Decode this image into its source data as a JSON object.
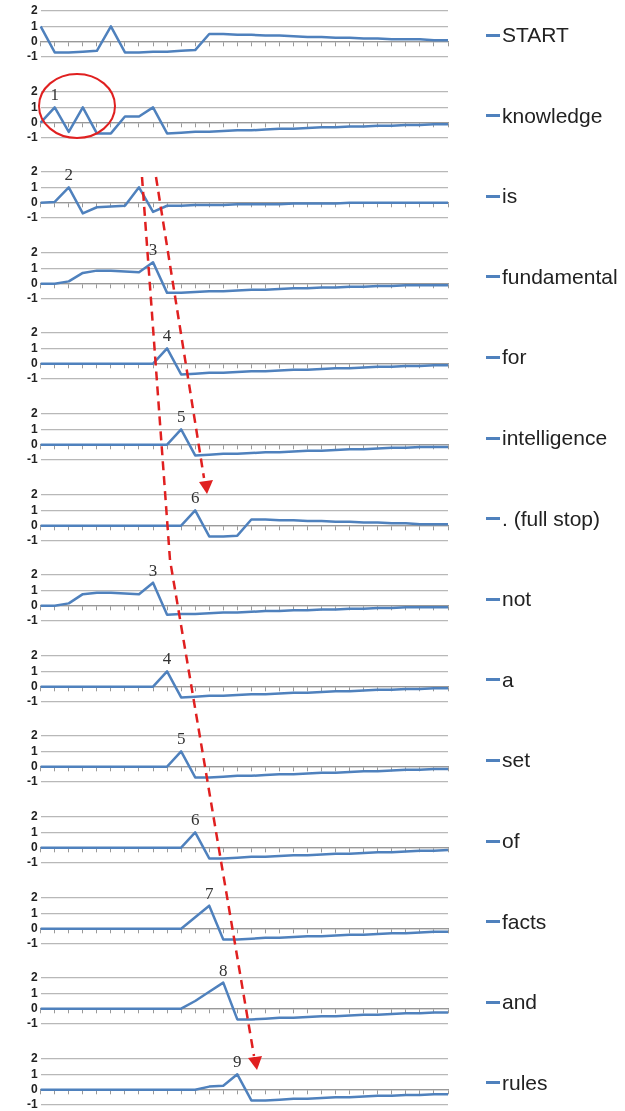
{
  "chart_data": [
    {
      "type": "line",
      "categories": [
        null,
        null,
        null,
        null,
        null,
        null,
        null,
        null,
        null,
        null,
        null,
        null,
        null,
        null,
        null,
        null,
        null,
        null,
        null,
        null,
        null,
        null,
        null,
        null,
        null,
        null,
        null,
        null,
        null,
        null
      ],
      "series": [
        {
          "name": "START",
          "color": "#4f81bd",
          "values": [
            1,
            -0.7,
            -0.7,
            -0.65,
            -0.6,
            1,
            -0.7,
            -0.7,
            -0.65,
            -0.65,
            -0.6,
            -0.55,
            0.5,
            0.5,
            0.45,
            0.45,
            0.4,
            0.4,
            0.35,
            0.3,
            0.3,
            0.25,
            0.25,
            0.2,
            0.2,
            0.15,
            0.15,
            0.15,
            0.1,
            0.1
          ]
        }
      ],
      "ylim": [
        -1,
        2
      ],
      "yticks": [
        -1,
        0,
        1,
        2
      ],
      "grid": "y",
      "legend": "right",
      "marker": "none",
      "tick_labels": "y"
    },
    {
      "type": "line",
      "categories": [
        null,
        null,
        null,
        null,
        null,
        null,
        null,
        null,
        null,
        null,
        null,
        null,
        null,
        null,
        null,
        null,
        null,
        null,
        null,
        null,
        null,
        null,
        null,
        null,
        null,
        null,
        null,
        null,
        null,
        null
      ],
      "series": [
        {
          "name": "knowledge",
          "color": "#4f81bd",
          "values": [
            0,
            1,
            -0.6,
            1,
            -0.7,
            -0.7,
            0.4,
            0.4,
            1,
            -0.7,
            -0.65,
            -0.6,
            -0.6,
            -0.55,
            -0.5,
            -0.5,
            -0.45,
            -0.4,
            -0.4,
            -0.35,
            -0.3,
            -0.3,
            -0.25,
            -0.25,
            -0.2,
            -0.2,
            -0.15,
            -0.15,
            -0.1,
            -0.1
          ]
        }
      ],
      "ylim": [
        -1,
        2
      ],
      "yticks": [
        -1,
        0,
        1,
        2
      ],
      "grid": "y",
      "legend": "right",
      "marker": "none",
      "tick_labels": "y",
      "annotations": [
        "1"
      ]
    },
    {
      "type": "line",
      "categories": [
        null,
        null,
        null,
        null,
        null,
        null,
        null,
        null,
        null,
        null,
        null,
        null,
        null,
        null,
        null,
        null,
        null,
        null,
        null,
        null,
        null,
        null,
        null,
        null,
        null,
        null,
        null,
        null,
        null,
        null
      ],
      "series": [
        {
          "name": "is",
          "color": "#4f81bd",
          "values": [
            0,
            0.05,
            1,
            -0.7,
            -0.3,
            -0.25,
            -0.2,
            1,
            -0.6,
            -0.2,
            -0.2,
            -0.15,
            -0.15,
            -0.15,
            -0.1,
            -0.1,
            -0.1,
            -0.1,
            -0.05,
            -0.05,
            -0.05,
            -0.05,
            0,
            0,
            0,
            0,
            0,
            0,
            0,
            0
          ]
        }
      ],
      "ylim": [
        -1,
        2
      ],
      "yticks": [
        -1,
        0,
        1,
        2
      ],
      "grid": "y",
      "legend": "right",
      "marker": "none",
      "tick_labels": "y",
      "annotations": [
        "2"
      ]
    },
    {
      "type": "line",
      "categories": [
        null,
        null,
        null,
        null,
        null,
        null,
        null,
        null,
        null,
        null,
        null,
        null,
        null,
        null,
        null,
        null,
        null,
        null,
        null,
        null,
        null,
        null,
        null,
        null,
        null,
        null,
        null,
        null,
        null,
        null
      ],
      "series": [
        {
          "name": "fundamental",
          "color": "#4f81bd",
          "values": [
            0,
            0,
            0.15,
            0.7,
            0.85,
            0.85,
            0.8,
            0.75,
            1.4,
            -0.6,
            -0.6,
            -0.55,
            -0.5,
            -0.5,
            -0.45,
            -0.4,
            -0.4,
            -0.35,
            -0.3,
            -0.3,
            -0.25,
            -0.25,
            -0.2,
            -0.2,
            -0.15,
            -0.15,
            -0.1,
            -0.1,
            -0.1,
            -0.1
          ]
        }
      ],
      "ylim": [
        -1,
        2
      ],
      "yticks": [
        -1,
        0,
        1,
        2
      ],
      "grid": "y",
      "legend": "right",
      "marker": "none",
      "tick_labels": "y",
      "annotations": [
        "3"
      ]
    },
    {
      "type": "line",
      "categories": [
        null,
        null,
        null,
        null,
        null,
        null,
        null,
        null,
        null,
        null,
        null,
        null,
        null,
        null,
        null,
        null,
        null,
        null,
        null,
        null,
        null,
        null,
        null,
        null,
        null,
        null,
        null,
        null,
        null,
        null
      ],
      "series": [
        {
          "name": "for",
          "color": "#4f81bd",
          "values": [
            0,
            0,
            0,
            0,
            0,
            0,
            0,
            0,
            0,
            1,
            -0.7,
            -0.65,
            -0.6,
            -0.6,
            -0.55,
            -0.5,
            -0.5,
            -0.45,
            -0.4,
            -0.4,
            -0.35,
            -0.3,
            -0.3,
            -0.25,
            -0.2,
            -0.2,
            -0.15,
            -0.15,
            -0.1,
            -0.1
          ]
        }
      ],
      "ylim": [
        -1,
        2
      ],
      "yticks": [
        -1,
        0,
        1,
        2
      ],
      "grid": "y",
      "legend": "right",
      "marker": "none",
      "tick_labels": "y",
      "annotations": [
        "4"
      ]
    },
    {
      "type": "line",
      "categories": [
        null,
        null,
        null,
        null,
        null,
        null,
        null,
        null,
        null,
        null,
        null,
        null,
        null,
        null,
        null,
        null,
        null,
        null,
        null,
        null,
        null,
        null,
        null,
        null,
        null,
        null,
        null,
        null,
        null,
        null
      ],
      "series": [
        {
          "name": "intelligence",
          "color": "#4f81bd",
          "values": [
            0,
            0,
            0,
            0,
            0,
            0,
            0,
            0,
            0,
            0,
            1,
            -0.7,
            -0.65,
            -0.6,
            -0.6,
            -0.55,
            -0.5,
            -0.5,
            -0.45,
            -0.4,
            -0.4,
            -0.35,
            -0.3,
            -0.3,
            -0.25,
            -0.2,
            -0.2,
            -0.15,
            -0.15,
            -0.15
          ]
        }
      ],
      "ylim": [
        -1,
        2
      ],
      "yticks": [
        -1,
        0,
        1,
        2
      ],
      "grid": "y",
      "legend": "right",
      "marker": "none",
      "tick_labels": "y",
      "annotations": [
        "5"
      ]
    },
    {
      "type": "line",
      "categories": [
        null,
        null,
        null,
        null,
        null,
        null,
        null,
        null,
        null,
        null,
        null,
        null,
        null,
        null,
        null,
        null,
        null,
        null,
        null,
        null,
        null,
        null,
        null,
        null,
        null,
        null,
        null,
        null,
        null,
        null
      ],
      "series": [
        {
          "name": ". (full stop)",
          "color": "#4f81bd",
          "values": [
            0,
            0,
            0,
            0,
            0,
            0,
            0,
            0,
            0,
            0,
            0,
            1,
            -0.7,
            -0.7,
            -0.65,
            0.4,
            0.4,
            0.35,
            0.35,
            0.3,
            0.3,
            0.25,
            0.25,
            0.2,
            0.2,
            0.15,
            0.15,
            0.1,
            0.1,
            0.1
          ]
        }
      ],
      "ylim": [
        -1,
        2
      ],
      "yticks": [
        -1,
        0,
        1,
        2
      ],
      "grid": "y",
      "legend": "right",
      "marker": "none",
      "tick_labels": "y",
      "annotations": [
        "6"
      ]
    },
    {
      "type": "line",
      "categories": [
        null,
        null,
        null,
        null,
        null,
        null,
        null,
        null,
        null,
        null,
        null,
        null,
        null,
        null,
        null,
        null,
        null,
        null,
        null,
        null,
        null,
        null,
        null,
        null,
        null,
        null,
        null,
        null,
        null,
        null
      ],
      "series": [
        {
          "name": "not",
          "color": "#4f81bd",
          "values": [
            0,
            0,
            0.15,
            0.75,
            0.85,
            0.85,
            0.8,
            0.75,
            1.5,
            -0.6,
            -0.55,
            -0.55,
            -0.5,
            -0.45,
            -0.45,
            -0.4,
            -0.35,
            -0.35,
            -0.3,
            -0.3,
            -0.25,
            -0.25,
            -0.2,
            -0.2,
            -0.15,
            -0.15,
            -0.1,
            -0.1,
            -0.1,
            -0.1
          ]
        }
      ],
      "ylim": [
        -1,
        2
      ],
      "yticks": [
        -1,
        0,
        1,
        2
      ],
      "grid": "y",
      "legend": "right",
      "marker": "none",
      "tick_labels": "y",
      "annotations": [
        "3"
      ]
    },
    {
      "type": "line",
      "categories": [
        null,
        null,
        null,
        null,
        null,
        null,
        null,
        null,
        null,
        null,
        null,
        null,
        null,
        null,
        null,
        null,
        null,
        null,
        null,
        null,
        null,
        null,
        null,
        null,
        null,
        null,
        null,
        null,
        null,
        null
      ],
      "series": [
        {
          "name": "a",
          "color": "#4f81bd",
          "values": [
            0,
            0,
            0,
            0,
            0,
            0,
            0,
            0,
            0,
            1,
            -0.7,
            -0.65,
            -0.6,
            -0.6,
            -0.55,
            -0.5,
            -0.5,
            -0.45,
            -0.4,
            -0.4,
            -0.35,
            -0.3,
            -0.3,
            -0.25,
            -0.2,
            -0.2,
            -0.15,
            -0.15,
            -0.1,
            -0.1
          ]
        }
      ],
      "ylim": [
        -1,
        2
      ],
      "yticks": [
        -1,
        0,
        1,
        2
      ],
      "grid": "y",
      "legend": "right",
      "marker": "none",
      "tick_labels": "y",
      "annotations": [
        "4"
      ]
    },
    {
      "type": "line",
      "categories": [
        null,
        null,
        null,
        null,
        null,
        null,
        null,
        null,
        null,
        null,
        null,
        null,
        null,
        null,
        null,
        null,
        null,
        null,
        null,
        null,
        null,
        null,
        null,
        null,
        null,
        null,
        null,
        null,
        null,
        null
      ],
      "series": [
        {
          "name": "set",
          "color": "#4f81bd",
          "values": [
            0,
            0,
            0,
            0,
            0,
            0,
            0,
            0,
            0,
            0,
            1,
            -0.7,
            -0.7,
            -0.65,
            -0.6,
            -0.6,
            -0.55,
            -0.5,
            -0.5,
            -0.45,
            -0.4,
            -0.4,
            -0.35,
            -0.3,
            -0.3,
            -0.25,
            -0.2,
            -0.2,
            -0.15,
            -0.15
          ]
        }
      ],
      "ylim": [
        -1,
        2
      ],
      "yticks": [
        -1,
        0,
        1,
        2
      ],
      "grid": "y",
      "legend": "right",
      "marker": "none",
      "tick_labels": "y",
      "annotations": [
        "5"
      ]
    },
    {
      "type": "line",
      "categories": [
        null,
        null,
        null,
        null,
        null,
        null,
        null,
        null,
        null,
        null,
        null,
        null,
        null,
        null,
        null,
        null,
        null,
        null,
        null,
        null,
        null,
        null,
        null,
        null,
        null,
        null,
        null,
        null,
        null,
        null
      ],
      "series": [
        {
          "name": "of",
          "color": "#4f81bd",
          "values": [
            0,
            0,
            0,
            0,
            0,
            0,
            0,
            0,
            0,
            0,
            0,
            1,
            -0.7,
            -0.7,
            -0.65,
            -0.6,
            -0.6,
            -0.55,
            -0.5,
            -0.5,
            -0.45,
            -0.4,
            -0.4,
            -0.35,
            -0.3,
            -0.3,
            -0.25,
            -0.2,
            -0.2,
            -0.15
          ]
        }
      ],
      "ylim": [
        -1,
        2
      ],
      "yticks": [
        -1,
        0,
        1,
        2
      ],
      "grid": "y",
      "legend": "right",
      "marker": "none",
      "tick_labels": "y",
      "annotations": [
        "6"
      ]
    },
    {
      "type": "line",
      "categories": [
        null,
        null,
        null,
        null,
        null,
        null,
        null,
        null,
        null,
        null,
        null,
        null,
        null,
        null,
        null,
        null,
        null,
        null,
        null,
        null,
        null,
        null,
        null,
        null,
        null,
        null,
        null,
        null,
        null,
        null
      ],
      "series": [
        {
          "name": "facts",
          "color": "#4f81bd",
          "values": [
            0,
            0,
            0,
            0,
            0,
            0,
            0,
            0,
            0,
            0,
            0,
            0.75,
            1.5,
            -0.7,
            -0.7,
            -0.65,
            -0.6,
            -0.6,
            -0.55,
            -0.5,
            -0.5,
            -0.45,
            -0.4,
            -0.4,
            -0.35,
            -0.3,
            -0.3,
            -0.25,
            -0.2,
            -0.2
          ]
        }
      ],
      "ylim": [
        -1,
        2
      ],
      "yticks": [
        -1,
        0,
        1,
        2
      ],
      "grid": "y",
      "legend": "right",
      "marker": "none",
      "tick_labels": "y",
      "annotations": [
        "7"
      ]
    },
    {
      "type": "line",
      "categories": [
        null,
        null,
        null,
        null,
        null,
        null,
        null,
        null,
        null,
        null,
        null,
        null,
        null,
        null,
        null,
        null,
        null,
        null,
        null,
        null,
        null,
        null,
        null,
        null,
        null,
        null,
        null,
        null,
        null,
        null
      ],
      "series": [
        {
          "name": "and",
          "color": "#4f81bd",
          "values": [
            0,
            0,
            0,
            0,
            0,
            0,
            0,
            0,
            0,
            0,
            0,
            0.5,
            1.1,
            1.7,
            -0.7,
            -0.7,
            -0.65,
            -0.6,
            -0.6,
            -0.55,
            -0.5,
            -0.5,
            -0.45,
            -0.4,
            -0.4,
            -0.35,
            -0.3,
            -0.3,
            -0.25,
            -0.25
          ]
        }
      ],
      "ylim": [
        -1,
        2
      ],
      "yticks": [
        -1,
        0,
        1,
        2
      ],
      "grid": "y",
      "legend": "right",
      "marker": "none",
      "tick_labels": "y",
      "annotations": [
        "8"
      ]
    },
    {
      "type": "line",
      "categories": [
        null,
        null,
        null,
        null,
        null,
        null,
        null,
        null,
        null,
        null,
        null,
        null,
        null,
        null,
        null,
        null,
        null,
        null,
        null,
        null,
        null,
        null,
        null,
        null,
        null,
        null,
        null,
        null,
        null,
        null
      ],
      "series": [
        {
          "name": "rules",
          "color": "#4f81bd",
          "values": [
            0,
            0,
            0,
            0,
            0,
            0,
            0,
            0,
            0,
            0,
            0,
            0,
            0.2,
            0.25,
            1,
            -0.7,
            -0.7,
            -0.65,
            -0.6,
            -0.6,
            -0.55,
            -0.5,
            -0.5,
            -0.45,
            -0.4,
            -0.4,
            -0.35,
            -0.35,
            -0.3,
            -0.3
          ]
        }
      ],
      "ylim": [
        -1,
        2
      ],
      "yticks": [
        -1,
        0,
        1,
        2
      ],
      "grid": "y",
      "legend": "right",
      "marker": "none",
      "tick_labels": "y",
      "annotations": [
        "9"
      ]
    }
  ]
}
